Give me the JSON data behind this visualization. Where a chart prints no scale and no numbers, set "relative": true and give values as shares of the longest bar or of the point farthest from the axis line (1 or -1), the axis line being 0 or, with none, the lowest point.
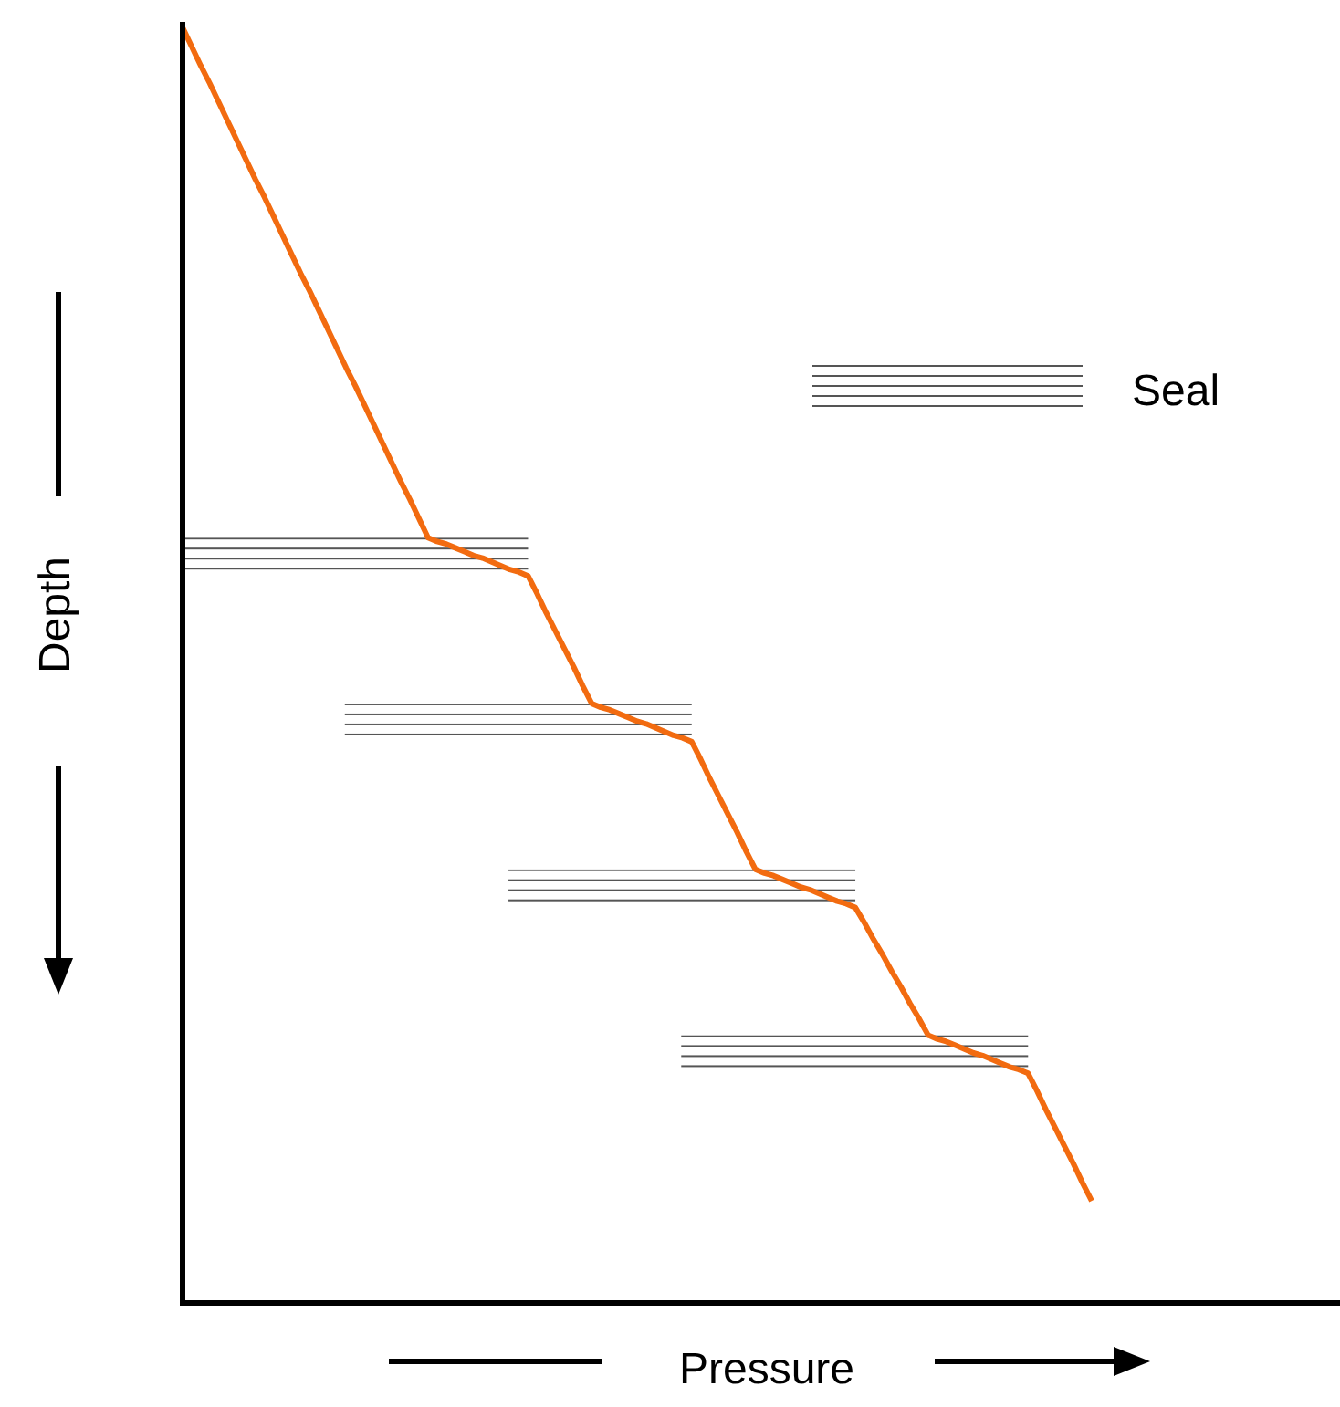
{
  "chart_data": {
    "type": "line",
    "relative": true,
    "xlabel": "Pressure",
    "ylabel": "Depth",
    "categories": [
      null,
      null,
      null,
      null,
      null,
      null,
      null,
      null,
      null,
      null,
      null,
      null,
      null,
      null,
      null,
      null,
      null,
      null,
      null,
      null,
      null,
      null,
      null,
      null,
      null,
      null,
      null,
      null,
      null,
      null,
      null,
      null,
      null,
      null,
      null,
      null,
      null,
      null,
      null,
      null,
      null,
      null,
      null,
      null,
      null,
      null,
      null,
      null,
      null,
      null,
      null,
      null,
      null,
      null,
      null,
      null,
      null,
      null,
      null,
      null,
      null,
      null,
      null,
      null,
      null,
      null,
      null,
      null,
      null,
      null,
      null,
      null,
      null,
      null,
      null,
      null,
      null,
      null,
      null,
      null,
      null,
      null,
      null,
      null,
      null,
      null,
      null,
      null,
      null,
      null,
      null,
      null,
      null,
      null,
      null,
      null,
      null,
      null,
      null,
      null,
      null
    ],
    "series": [
      {
        "color": "#f26b10",
        "values": [
          1,
          0.985,
          0.97,
          0.956,
          0.941,
          0.926,
          0.911,
          0.896,
          0.881,
          0.867,
          0.852,
          0.837,
          0.822,
          0.807,
          0.793,
          0.778,
          0.763,
          0.748,
          0.733,
          0.719,
          0.704,
          0.689,
          0.674,
          0.659,
          0.644,
          0.63,
          0.615,
          0.6,
          0.597,
          0.595,
          0.592,
          0.589,
          0.586,
          0.584,
          0.581,
          0.578,
          0.575,
          0.573,
          0.57,
          0.556,
          0.541,
          0.527,
          0.513,
          0.499,
          0.484,
          0.47,
          0.467,
          0.465,
          0.462,
          0.459,
          0.456,
          0.454,
          0.451,
          0.448,
          0.445,
          0.443,
          0.44,
          0.426,
          0.411,
          0.397,
          0.383,
          0.369,
          0.354,
          0.34,
          0.337,
          0.335,
          0.332,
          0.329,
          0.326,
          0.324,
          0.321,
          0.318,
          0.315,
          0.313,
          0.31,
          0.298,
          0.285,
          0.273,
          0.26,
          0.248,
          0.235,
          0.223,
          0.21,
          0.207,
          0.205,
          0.202,
          0.199,
          0.196,
          0.194,
          0.191,
          0.188,
          0.185,
          0.183,
          0.18,
          0.166,
          0.151,
          0.137,
          0.123,
          0.109,
          0.094,
          0.08
        ]
      }
    ],
    "bands": [
      {
        "axis": "y",
        "from": 0.57,
        "to": 0.6,
        "color": "#555555"
      },
      {
        "axis": "y",
        "from": 0.44,
        "to": 0.47,
        "color": "#555555"
      },
      {
        "axis": "y",
        "from": 0.31,
        "to": 0.34,
        "color": "#555555"
      },
      {
        "axis": "y",
        "from": 0.18,
        "to": 0.21,
        "color": "#555555"
      }
    ],
    "annotations": [
      "Seal"
    ],
    "grid": false,
    "marker": "none",
    "line_style": "solid"
  }
}
